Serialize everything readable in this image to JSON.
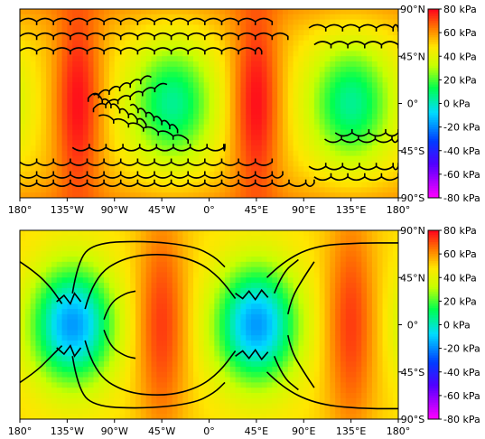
{
  "chart_data": [
    {
      "type": "heatmap",
      "projection": "equirectangular",
      "title": "",
      "xlabel": "",
      "ylabel": "",
      "xlim": [
        -180,
        180
      ],
      "ylim": [
        -90,
        90
      ],
      "x_ticks": [
        -180,
        -135,
        -90,
        -45,
        0,
        45,
        90,
        135,
        180
      ],
      "x_tick_labels": [
        "180°",
        "135°W",
        "90°W",
        "45°W",
        "0°",
        "45°E",
        "90°E",
        "135°E",
        "180°"
      ],
      "y_ticks": [
        90,
        45,
        0,
        -45,
        -90
      ],
      "y_tick_labels": [
        "90°N",
        "45°N",
        "0°",
        "45°S",
        "90°S"
      ],
      "colorbar": {
        "colormap": "gist_rainbow_r",
        "range": [
          -80,
          80
        ],
        "ticks": [
          80,
          60,
          40,
          20,
          0,
          -20,
          -40,
          -60,
          -80
        ],
        "tick_labels": [
          "80 kPa",
          "60 kPa",
          "40 kPa",
          "20 kPa",
          "0 kPa",
          "-20 kPa",
          "-40 kPa",
          "-60 kPa",
          "-80 kPa"
        ]
      },
      "field": {
        "background_value": 50,
        "features": [
          {
            "lon": -35,
            "lat": 0,
            "value": 5,
            "kind": "low"
          },
          {
            "lon": 135,
            "lat": 0,
            "value": 5,
            "kind": "low"
          },
          {
            "lon": -125,
            "lat": 0,
            "value": 78,
            "kind": "high"
          },
          {
            "lon": 45,
            "lat": 0,
            "value": 78,
            "kind": "high"
          }
        ],
        "pole_value": 60
      },
      "overlay": "fracture-lines"
    },
    {
      "type": "heatmap",
      "projection": "equirectangular",
      "title": "",
      "xlabel": "",
      "ylabel": "",
      "xlim": [
        -180,
        180
      ],
      "ylim": [
        -90,
        90
      ],
      "x_ticks": [
        -180,
        -135,
        -90,
        -45,
        0,
        45,
        90,
        135,
        180
      ],
      "x_tick_labels": [
        "180°",
        "135°W",
        "90°W",
        "45°W",
        "0°",
        "45°E",
        "90°E",
        "135°E",
        "180°"
      ],
      "y_ticks": [
        90,
        45,
        0,
        -45,
        -90
      ],
      "y_tick_labels": [
        "90°N",
        "45°N",
        "0°",
        "45°S",
        "90°S"
      ],
      "colorbar": {
        "colormap": "gist_rainbow_r",
        "range": [
          -80,
          80
        ],
        "ticks": [
          80,
          60,
          40,
          20,
          0,
          -20,
          -40,
          -60,
          -80
        ],
        "tick_labels": [
          "80 kPa",
          "60 kPa",
          "40 kPa",
          "20 kPa",
          "0 kPa",
          "-20 kPa",
          "-40 kPa",
          "-60 kPa",
          "-80 kPa"
        ]
      },
      "field": {
        "background_value": 50,
        "features": [
          {
            "lon": -130,
            "lat": 0,
            "value": -18,
            "kind": "low"
          },
          {
            "lon": 45,
            "lat": 0,
            "value": -18,
            "kind": "low"
          },
          {
            "lon": -45,
            "lat": 0,
            "value": 72,
            "kind": "high"
          },
          {
            "lon": 135,
            "lat": 0,
            "value": 72,
            "kind": "high"
          }
        ],
        "pole_value": 50
      },
      "overlay": "fracture-lines"
    }
  ]
}
